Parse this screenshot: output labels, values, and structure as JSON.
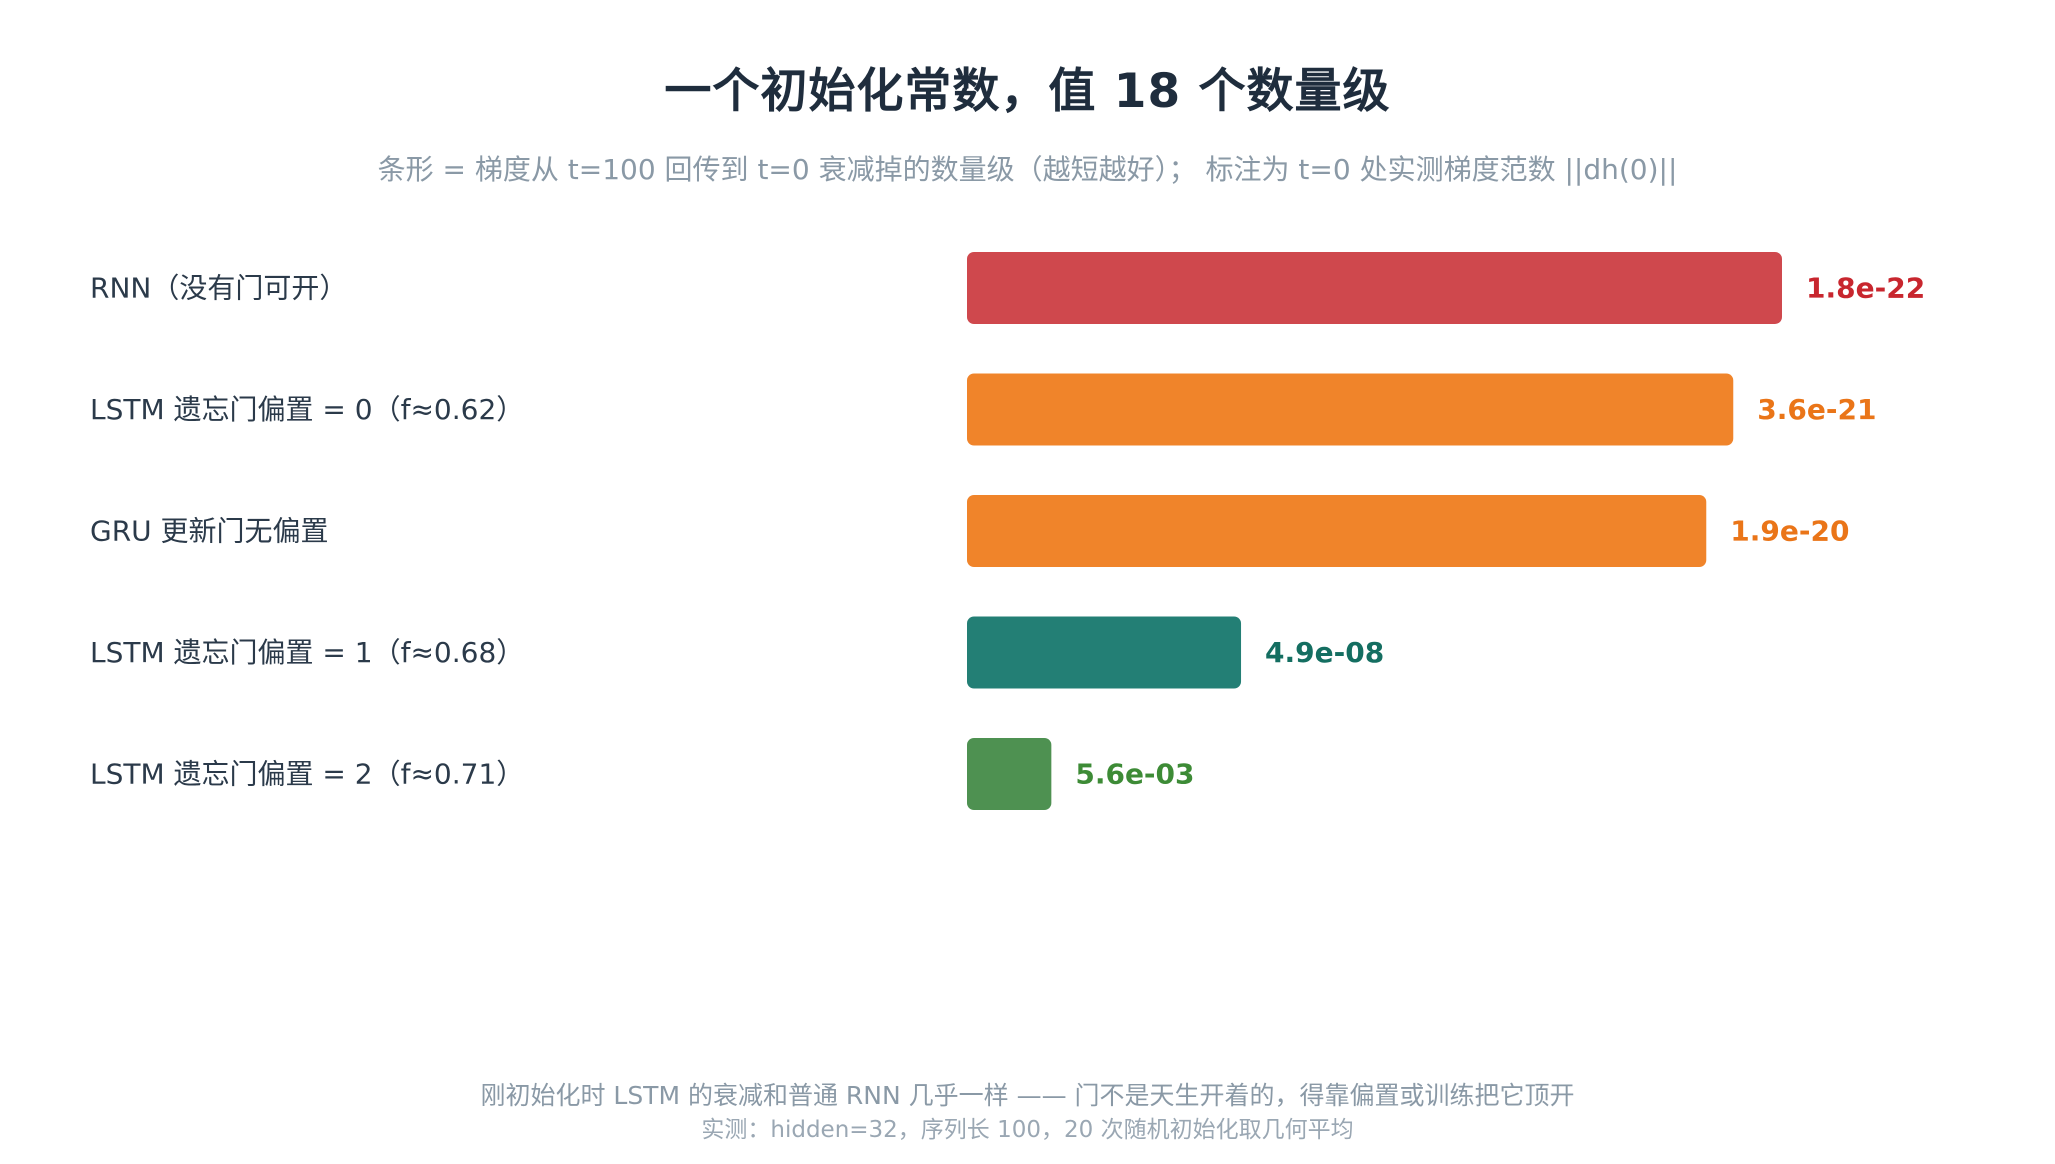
{
  "title": "一个初始化常数，值 18 个数量级",
  "subtitle": "条形 = 梯度从 t=100 回传到 t=0 衰减掉的数量级（越短越好）； 标注为 t=0 处实测梯度范数 ||dh(0)||",
  "footer": {
    "note": "刚初始化时 LSTM 的衰减和普通 RNN 几乎一样 —— 门不是天生开着的，得靠偏置或训练把它顶开",
    "sub": "实测：hidden=32，序列长 100，20 次随机初始化取几何平均"
  },
  "chart_data": {
    "type": "bar",
    "orientation": "horizontal",
    "title": "一个初始化常数，值 18 个数量级",
    "subtitle": "条形 = 梯度从 t=100 回传到 t=0 衰减掉的数量级（越短越好）； 标注为 t=0 处实测梯度范数 ||dh(0)||",
    "categories": [
      "RNN（没有门可开）",
      "LSTM 遗忘门偏置 = 0（f≈0.62）",
      "GRU 更新门无偏置",
      "LSTM 遗忘门偏置 = 1（f≈0.68）",
      "LSTM 遗忘门偏置 = 2（f≈0.71）"
    ],
    "values": [
      21.74,
      20.44,
      19.72,
      7.31,
      2.25
    ],
    "value_labels": [
      "1.8e-22",
      "3.6e-21",
      "1.9e-20",
      "4.9e-08",
      "5.6e-03"
    ],
    "colors": [
      "#cf484d",
      "#f0842a",
      "#f0842a",
      "#237f75",
      "#4e9151"
    ],
    "label_colors": [
      "#c8262e",
      "#ea7518",
      "#ea7518",
      "#146e61",
      "#3d8b36"
    ],
    "xlim": [
      0,
      21.74
    ],
    "grid": false,
    "legend": "none"
  }
}
